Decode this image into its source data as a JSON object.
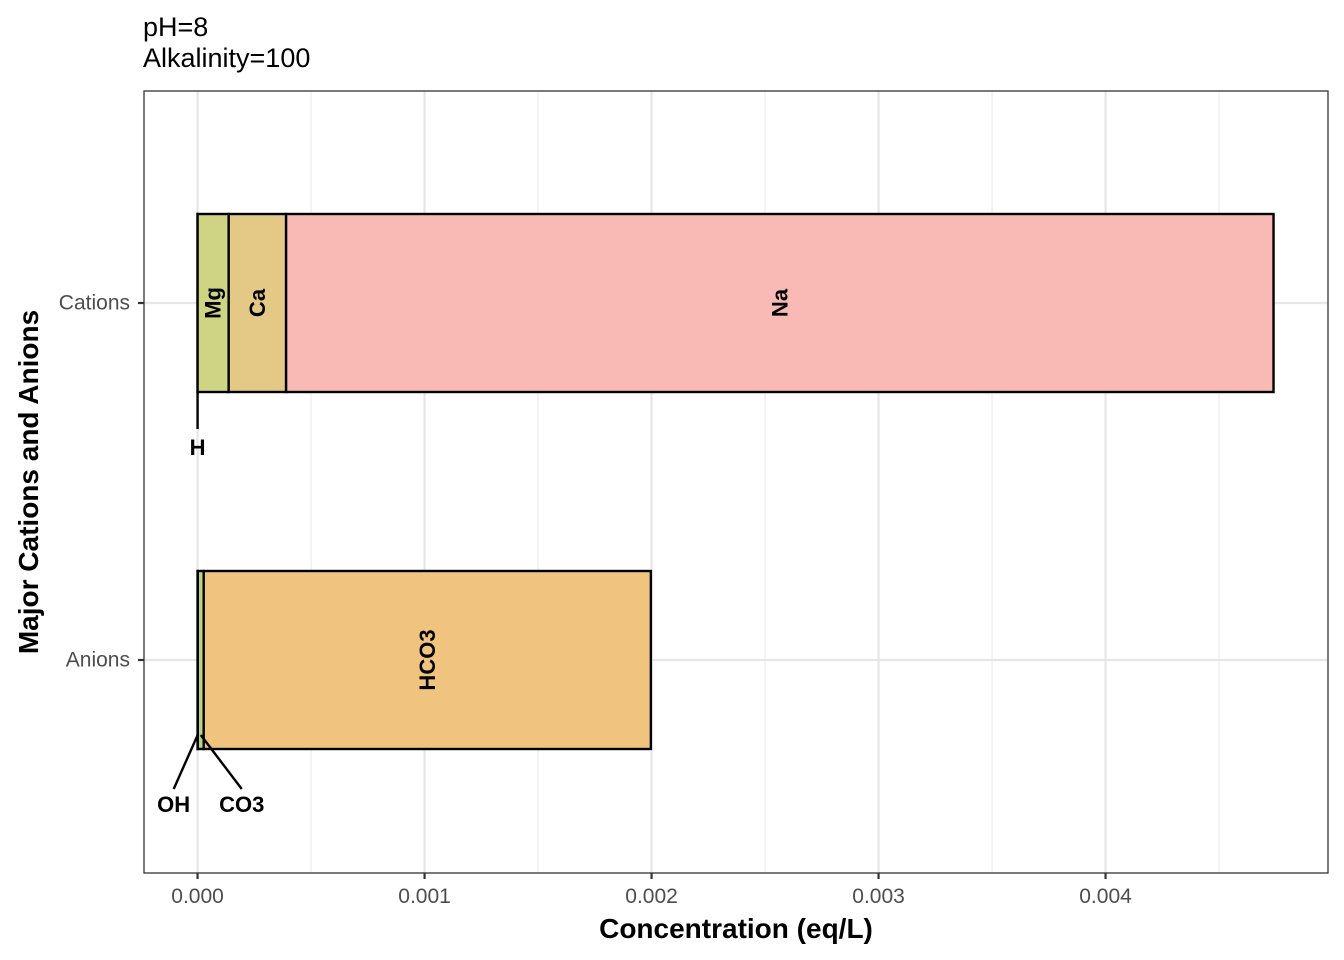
{
  "chart_data": {
    "type": "bar",
    "orientation": "horizontal",
    "stacked": true,
    "title_lines": [
      "pH=8",
      "Alkalinity=100"
    ],
    "xlabel": "Concentration (eq/L)",
    "ylabel": "Major Cations and Anions",
    "xlim": [
      -0.000236,
      0.00498
    ],
    "x_ticks": [
      0.0,
      0.001,
      0.002,
      0.003,
      0.004
    ],
    "x_tick_labels": [
      "0.000",
      "0.001",
      "0.002",
      "0.003",
      "0.004"
    ],
    "categories": [
      "Cations",
      "Anions"
    ],
    "grid": true,
    "legend": "none",
    "bars": [
      {
        "category": "Cations",
        "segments": [
          {
            "name": "H",
            "value": 1e-08,
            "color": "#f8766d",
            "label_mode": "callout"
          },
          {
            "name": "Mg",
            "value": 0.000137,
            "color": "#cfd484",
            "label_mode": "inside"
          },
          {
            "name": "Ca",
            "value": 0.000253,
            "color": "#e4c885",
            "label_mode": "inside"
          },
          {
            "name": "Na",
            "value": 0.00435,
            "color": "#f9b9b5",
            "label_mode": "inside"
          }
        ]
      },
      {
        "category": "Anions",
        "segments": [
          {
            "name": "OH",
            "value": 1e-06,
            "color": "#9dd49e",
            "label_mode": "callout"
          },
          {
            "name": "CO3",
            "value": 2.6e-05,
            "color": "#b8d480",
            "label_mode": "callout"
          },
          {
            "name": "HCO3",
            "value": 0.00197,
            "color": "#f0c47f",
            "label_mode": "inside"
          }
        ]
      }
    ]
  }
}
